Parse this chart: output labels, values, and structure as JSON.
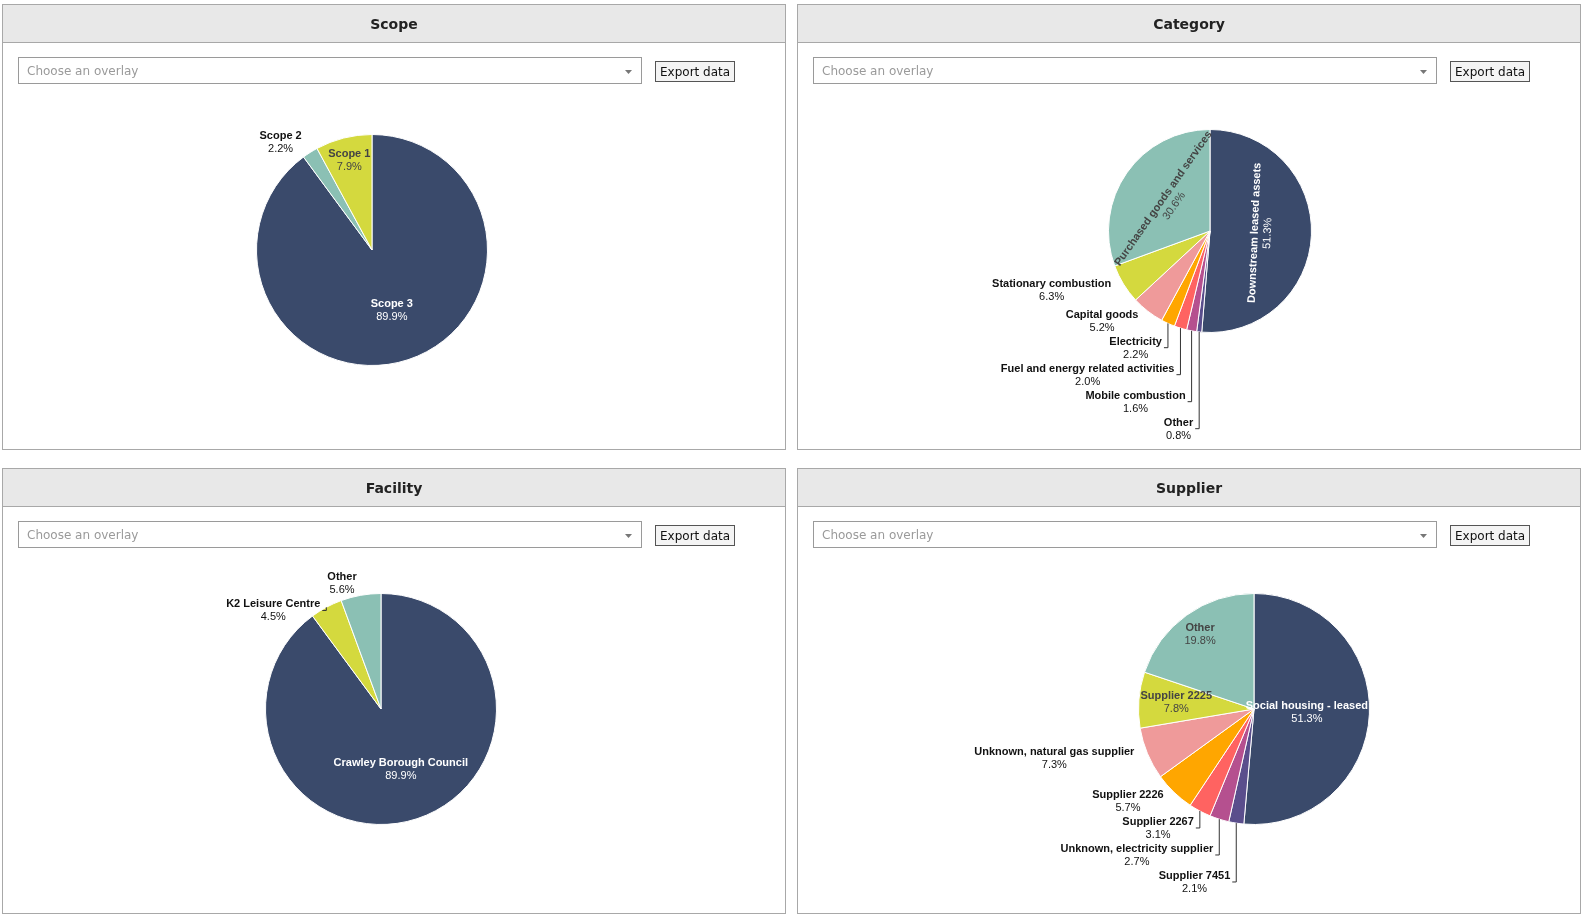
{
  "chart_data": [
    {
      "type": "pie",
      "title": "Scope",
      "categories": [
        "Scope 3",
        "Scope 2",
        "Scope 1"
      ],
      "values": [
        89.9,
        2.2,
        7.9
      ],
      "colors": [
        "#3a4a6b",
        "#8bc0b4",
        "#d4d93e"
      ],
      "value_labels": [
        "89.9%",
        "2.2%",
        "7.9%"
      ],
      "annotations": [
        "Choose an overlay",
        "Export data"
      ]
    },
    {
      "type": "pie",
      "title": "Category",
      "categories": [
        "Downstream leased assets",
        "Other",
        "Mobile combustion",
        "Fuel and energy related activities",
        "Electricity",
        "Capital goods",
        "Stationary combustion",
        "Purchased goods and services"
      ],
      "values": [
        51.3,
        0.8,
        1.6,
        2.0,
        2.2,
        5.2,
        6.3,
        30.6
      ],
      "colors": [
        "#3a4a6b",
        "#5a4e8c",
        "#b5508f",
        "#ff6361",
        "#ffa600",
        "#ef9a9a",
        "#d4d93e",
        "#8bc0b4"
      ],
      "value_labels": [
        "51.3%",
        "0.8%",
        "1.6%",
        "2.0%",
        "2.2%",
        "5.2%",
        "6.3%",
        "30.6%"
      ],
      "annotations": [
        "Choose an overlay",
        "Export data"
      ]
    },
    {
      "type": "pie",
      "title": "Facility",
      "categories": [
        "Crawley Borough Council",
        "K2 Leisure Centre",
        "Other"
      ],
      "values": [
        89.9,
        4.5,
        5.6
      ],
      "colors": [
        "#3a4a6b",
        "#d4d93e",
        "#8bc0b4"
      ],
      "value_labels": [
        "89.9%",
        "4.5%",
        "5.6%"
      ],
      "annotations": [
        "Choose an overlay",
        "Export data"
      ]
    },
    {
      "type": "pie",
      "title": "Supplier",
      "categories": [
        "Social housing - leased",
        "Supplier 7451",
        "Unknown, electricity supplier",
        "Supplier 2267",
        "Supplier 2226",
        "Unknown, natural gas supplier",
        "Supplier 2225",
        "Other"
      ],
      "values": [
        51.3,
        2.1,
        2.7,
        3.1,
        5.7,
        7.3,
        7.8,
        19.8
      ],
      "colors": [
        "#3a4a6b",
        "#5a4e8c",
        "#b5508f",
        "#ff6361",
        "#ffa600",
        "#ef9a9a",
        "#d4d93e",
        "#8bc0b4"
      ],
      "value_labels": [
        "51.3%",
        "2.1%",
        "2.7%",
        "3.1%",
        "5.7%",
        "7.3%",
        "7.8%",
        "19.8%"
      ],
      "annotations": [
        "Choose an overlay",
        "Export data"
      ]
    }
  ]
}
